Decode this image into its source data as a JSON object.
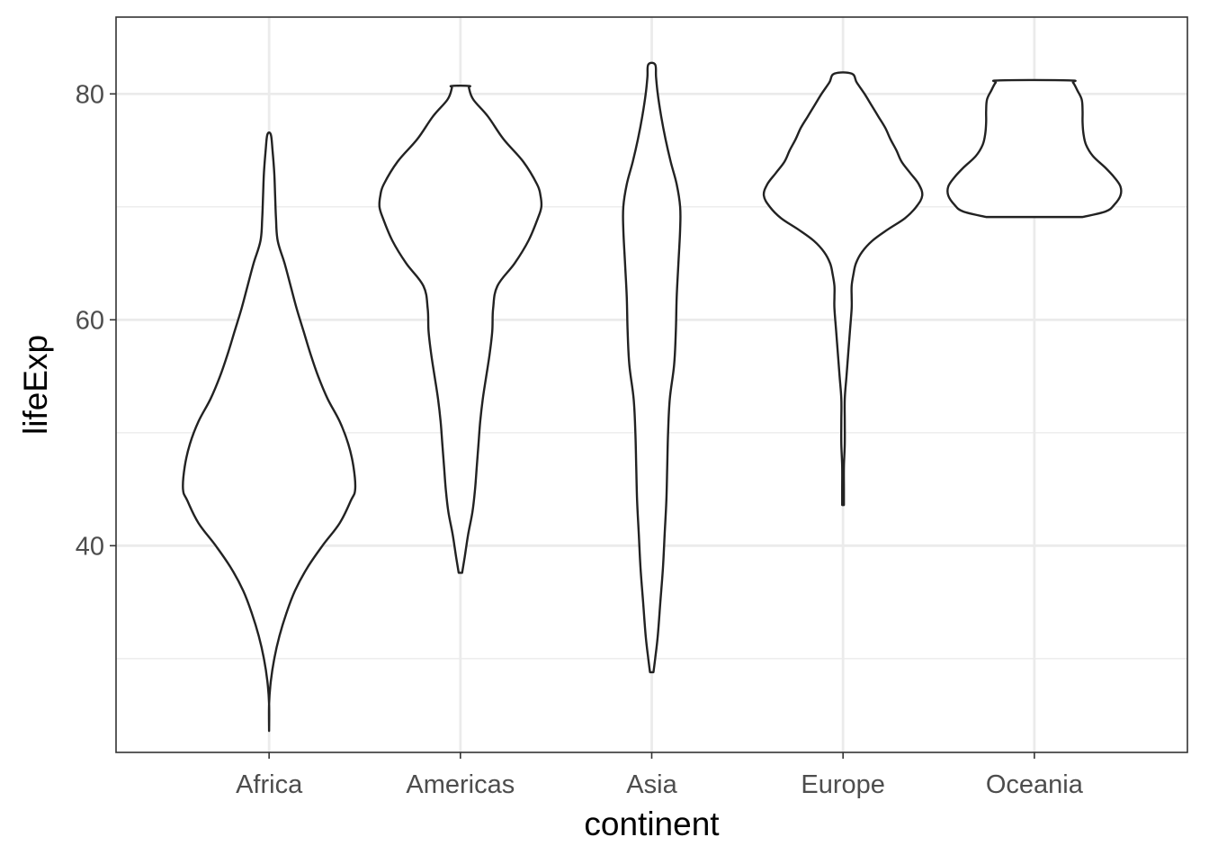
{
  "chart_data": {
    "type": "violin",
    "xlabel": "continent",
    "ylabel": "lifeExp",
    "categories": [
      "Africa",
      "Americas",
      "Asia",
      "Europe",
      "Oceania"
    ],
    "ylim": [
      21.7,
      86.8
    ],
    "y_ticks": [
      40,
      60,
      80
    ],
    "y_minor_ticks": [
      30,
      50,
      70
    ],
    "grid": true,
    "theme": "bw",
    "colors": {
      "outline": "#222222",
      "grid": "#ebebeb",
      "panel_border": "#333333",
      "tick_text": "#4d4d4d"
    },
    "series": [
      {
        "category": "Africa",
        "min": 23.6,
        "max": 76.4,
        "density_half_width": [
          [
            23.6,
            0.0
          ],
          [
            26.0,
            0.0
          ],
          [
            28.0,
            0.02
          ],
          [
            30.0,
            0.06
          ],
          [
            32.0,
            0.12
          ],
          [
            34.0,
            0.2
          ],
          [
            36.0,
            0.3
          ],
          [
            38.0,
            0.44
          ],
          [
            40.0,
            0.62
          ],
          [
            42.0,
            0.82
          ],
          [
            44.0,
            0.95
          ],
          [
            45.0,
            1.0
          ],
          [
            47.0,
            0.98
          ],
          [
            49.0,
            0.92
          ],
          [
            51.0,
            0.82
          ],
          [
            53.0,
            0.68
          ],
          [
            55.0,
            0.57
          ],
          [
            57.0,
            0.48
          ],
          [
            59.0,
            0.4
          ],
          [
            61.0,
            0.32
          ],
          [
            63.0,
            0.25
          ],
          [
            65.0,
            0.18
          ],
          [
            67.0,
            0.1
          ],
          [
            69.0,
            0.08
          ],
          [
            71.0,
            0.07
          ],
          [
            73.0,
            0.06
          ],
          [
            75.0,
            0.04
          ],
          [
            76.4,
            0.02
          ]
        ]
      },
      {
        "category": "Americas",
        "min": 37.6,
        "max": 80.7,
        "density_half_width": [
          [
            37.6,
            0.02
          ],
          [
            39.0,
            0.05
          ],
          [
            41.0,
            0.09
          ],
          [
            43.0,
            0.14
          ],
          [
            45.0,
            0.17
          ],
          [
            47.0,
            0.19
          ],
          [
            49.0,
            0.21
          ],
          [
            51.0,
            0.23
          ],
          [
            53.0,
            0.26
          ],
          [
            55.0,
            0.3
          ],
          [
            57.0,
            0.34
          ],
          [
            59.0,
            0.37
          ],
          [
            61.0,
            0.38
          ],
          [
            63.0,
            0.43
          ],
          [
            65.0,
            0.63
          ],
          [
            67.0,
            0.79
          ],
          [
            69.0,
            0.9
          ],
          [
            70.0,
            0.94
          ],
          [
            71.0,
            0.93
          ],
          [
            72.0,
            0.89
          ],
          [
            74.0,
            0.73
          ],
          [
            76.0,
            0.5
          ],
          [
            78.0,
            0.32
          ],
          [
            79.5,
            0.15
          ],
          [
            80.5,
            0.1
          ],
          [
            80.7,
            0.1
          ]
        ]
      },
      {
        "category": "Asia",
        "min": 28.8,
        "max": 82.6,
        "density_half_width": [
          [
            28.8,
            0.02
          ],
          [
            30.0,
            0.04
          ],
          [
            32.0,
            0.07
          ],
          [
            35.0,
            0.1
          ],
          [
            38.0,
            0.13
          ],
          [
            41.0,
            0.15
          ],
          [
            44.0,
            0.17
          ],
          [
            47.0,
            0.18
          ],
          [
            50.0,
            0.19
          ],
          [
            53.0,
            0.21
          ],
          [
            56.0,
            0.26
          ],
          [
            59.0,
            0.28
          ],
          [
            62.0,
            0.29
          ],
          [
            65.0,
            0.31
          ],
          [
            68.0,
            0.33
          ],
          [
            70.0,
            0.33
          ],
          [
            72.0,
            0.29
          ],
          [
            74.0,
            0.22
          ],
          [
            76.0,
            0.16
          ],
          [
            78.0,
            0.11
          ],
          [
            80.0,
            0.07
          ],
          [
            81.5,
            0.05
          ],
          [
            82.6,
            0.04
          ]
        ]
      },
      {
        "category": "Europe",
        "min": 43.6,
        "max": 81.8,
        "density_half_width": [
          [
            43.6,
            0.01
          ],
          [
            45.0,
            0.01
          ],
          [
            47.0,
            0.01
          ],
          [
            49.0,
            0.02
          ],
          [
            51.0,
            0.02
          ],
          [
            53.0,
            0.02
          ],
          [
            55.0,
            0.04
          ],
          [
            57.0,
            0.06
          ],
          [
            59.0,
            0.08
          ],
          [
            61.0,
            0.1
          ],
          [
            62.0,
            0.1
          ],
          [
            63.0,
            0.1
          ],
          [
            64.0,
            0.12
          ],
          [
            65.0,
            0.15
          ],
          [
            66.0,
            0.22
          ],
          [
            67.0,
            0.34
          ],
          [
            68.0,
            0.52
          ],
          [
            69.0,
            0.72
          ],
          [
            70.0,
            0.85
          ],
          [
            71.0,
            0.92
          ],
          [
            72.0,
            0.88
          ],
          [
            73.0,
            0.78
          ],
          [
            74.0,
            0.68
          ],
          [
            75.0,
            0.62
          ],
          [
            76.0,
            0.55
          ],
          [
            77.0,
            0.49
          ],
          [
            78.0,
            0.41
          ],
          [
            79.0,
            0.33
          ],
          [
            80.0,
            0.25
          ],
          [
            81.0,
            0.16
          ],
          [
            81.8,
            0.1
          ]
        ]
      },
      {
        "category": "Oceania",
        "min": 69.1,
        "max": 81.2,
        "density_half_width": [
          [
            69.1,
            0.56
          ],
          [
            69.6,
            0.83
          ],
          [
            70.2,
            0.93
          ],
          [
            71.0,
            1.0
          ],
          [
            71.8,
            1.0
          ],
          [
            72.6,
            0.93
          ],
          [
            73.5,
            0.82
          ],
          [
            74.5,
            0.68
          ],
          [
            75.5,
            0.6
          ],
          [
            76.5,
            0.57
          ],
          [
            77.5,
            0.56
          ],
          [
            78.5,
            0.56
          ],
          [
            79.5,
            0.55
          ],
          [
            80.3,
            0.5
          ],
          [
            81.0,
            0.45
          ],
          [
            81.2,
            0.4
          ]
        ]
      }
    ]
  }
}
